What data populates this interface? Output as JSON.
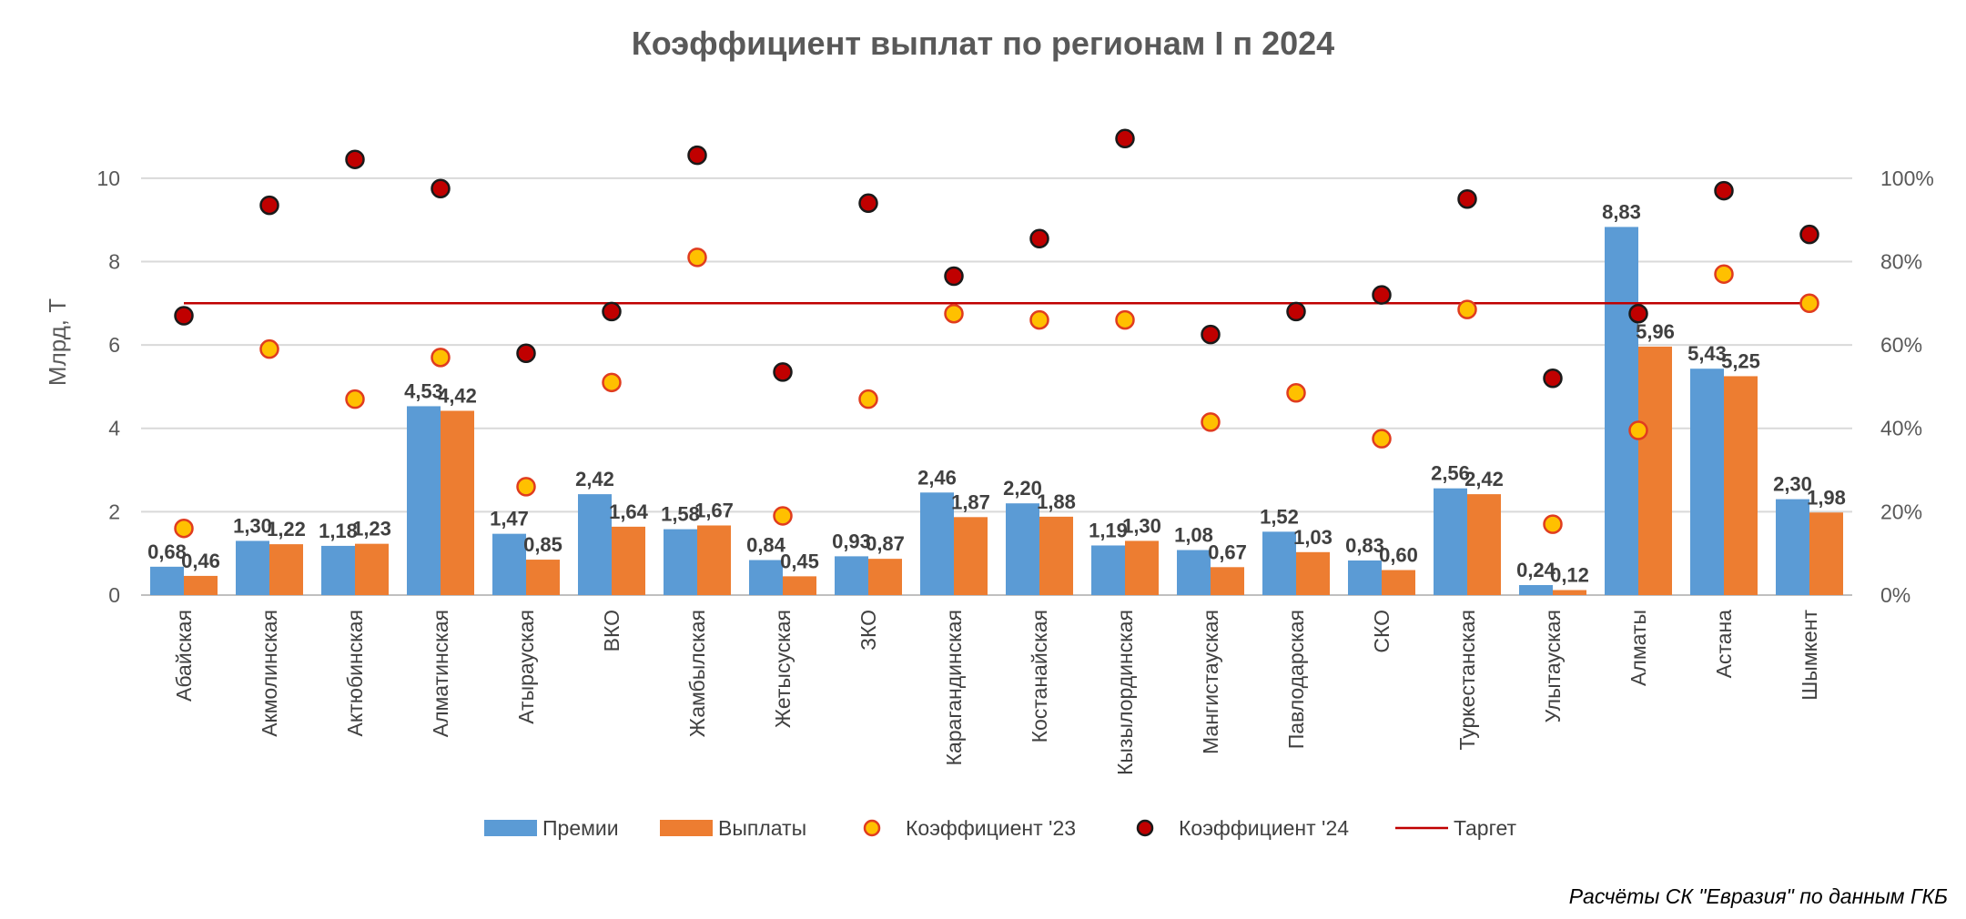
{
  "chart_data": {
    "type": "bar",
    "title": "Коэффициент выплат по регионам I п 2024",
    "ylabel": "Млрд, Т",
    "ylim": [
      0,
      11
    ],
    "y_ticks": [
      "0",
      "2",
      "4",
      "6",
      "8",
      "10"
    ],
    "y2lim": [
      0,
      1.1
    ],
    "y2_ticks": [
      "0%",
      "20%",
      "40%",
      "60%",
      "80%",
      "100%"
    ],
    "grid": true,
    "legend_position": "bottom",
    "categories": [
      "Абайская",
      "Акмолинская",
      "Актюбинская",
      "Алматинская",
      "Атырауская",
      "ВКО",
      "Жамбылская",
      "Жетысуская",
      "ЗКО",
      "Карагандинская",
      "Костанайская",
      "Кызылординская",
      "Мангистауская",
      "Павлодарская",
      "СКО",
      "Туркестанская",
      "Улытауская",
      "Алматы",
      "Астана",
      "Шымкент"
    ],
    "series": [
      {
        "name": "Премии",
        "kind": "bar",
        "axis": "left",
        "color": "#5B9BD5",
        "values": [
          0.68,
          1.3,
          1.18,
          4.53,
          1.47,
          2.42,
          1.58,
          0.84,
          0.93,
          2.46,
          2.2,
          1.19,
          1.08,
          1.52,
          0.83,
          2.56,
          0.24,
          8.83,
          5.43,
          2.3
        ],
        "labels": [
          "0,68",
          "1,30",
          "1,18",
          "4,53",
          "1,47",
          "2,42",
          "1,58",
          "0,84",
          "0,93",
          "2,46",
          "2,20",
          "1,19",
          "1,08",
          "1,52",
          "0,83",
          "2,56",
          "0,24",
          "8,83",
          "5,43",
          "2,30"
        ]
      },
      {
        "name": "Выплаты",
        "kind": "bar",
        "axis": "left",
        "color": "#ED7D31",
        "values": [
          0.46,
          1.22,
          1.23,
          4.42,
          0.85,
          1.64,
          1.67,
          0.45,
          0.87,
          1.87,
          1.88,
          1.3,
          0.67,
          1.03,
          0.6,
          2.42,
          0.12,
          5.96,
          5.25,
          1.98
        ],
        "labels": [
          "0,46",
          "1,22",
          "1,23",
          "4,42",
          "0,85",
          "1,64",
          "1,67",
          "0,45",
          "0,87",
          "1,87",
          "1,88",
          "1,30",
          "0,67",
          "1,03",
          "0,60",
          "2,42",
          "0,12",
          "5,96",
          "5,25",
          "1,98"
        ]
      },
      {
        "name": "Коэффициент '23",
        "kind": "scatter",
        "axis": "right",
        "color": "#FFC000",
        "edge_color": "#E03C1F",
        "values": [
          0.16,
          0.59,
          0.47,
          0.57,
          0.26,
          0.51,
          0.81,
          0.19,
          0.47,
          0.675,
          0.66,
          0.66,
          0.415,
          0.485,
          0.375,
          0.685,
          0.17,
          0.395,
          0.77,
          0.7
        ]
      },
      {
        "name": "Коэффициент '24",
        "kind": "scatter",
        "axis": "right",
        "color": "#C00000",
        "edge_color": "#1A1A1A",
        "values": [
          0.67,
          0.935,
          1.045,
          0.975,
          0.58,
          0.68,
          1.055,
          0.535,
          0.94,
          0.765,
          0.855,
          1.095,
          0.625,
          0.68,
          0.72,
          0.95,
          0.52,
          0.675,
          0.97,
          0.865
        ]
      },
      {
        "name": "Таргет",
        "kind": "line",
        "axis": "right",
        "color": "#C00000",
        "value": 0.7
      }
    ]
  },
  "source_note": "Расчёты СК \"Евразия\" по данным ГКБ"
}
